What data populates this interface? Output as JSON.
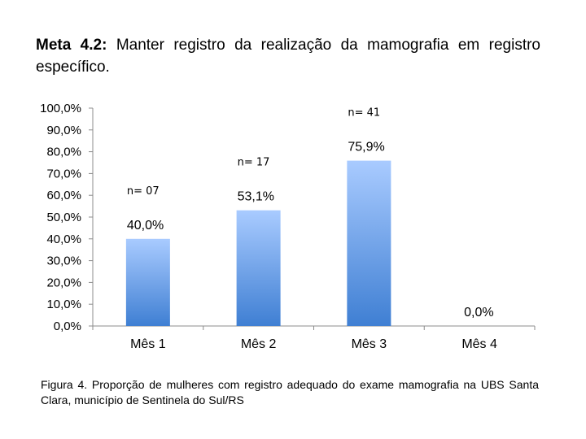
{
  "title": {
    "label": "Meta 4.2:",
    "text": " Manter registro da realização da mamografia em registro específico."
  },
  "caption": {
    "label": "Figura 4.",
    "text": " Proporção de mulheres com registro adequado do exame mamografia na UBS Santa Clara, município de Sentinela do Sul/RS"
  },
  "chart_data": {
    "type": "bar",
    "categories": [
      "Mês 1",
      "Mês 2",
      "Mês 3",
      "Mês 4"
    ],
    "values": [
      40.0,
      53.1,
      75.9,
      0.0
    ],
    "value_labels": [
      "40,0%",
      "53,1%",
      "75,9%",
      "0,0%"
    ],
    "n_labels": [
      "n= 07",
      "n= 17",
      "n= 41",
      ""
    ],
    "ylim": [
      0,
      100
    ],
    "yticks": [
      0,
      10,
      20,
      30,
      40,
      50,
      60,
      70,
      80,
      90,
      100
    ],
    "ytick_labels": [
      "0,0%",
      "10,0%",
      "20,0%",
      "30,0%",
      "40,0%",
      "50,0%",
      "60,0%",
      "70,0%",
      "80,0%",
      "90,0%",
      "100,0%"
    ],
    "bar_color_top": "#a9cbff",
    "bar_color_bottom": "#3f7fd3",
    "grid": false,
    "legend": "none"
  }
}
